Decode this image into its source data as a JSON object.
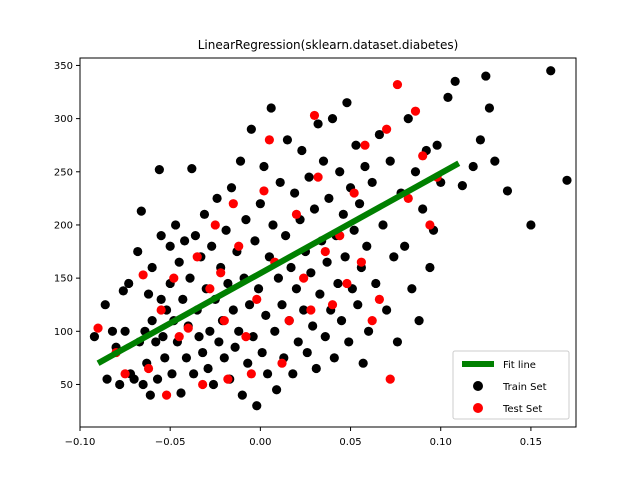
{
  "chart_data": {
    "type": "scatter",
    "title": "LinearRegression(sklearn.dataset.diabetes)",
    "xlabel": "",
    "ylabel": "",
    "xlim": [
      -0.1,
      0.175
    ],
    "ylim": [
      10,
      357
    ],
    "x_ticks": [
      -0.1,
      -0.05,
      0.0,
      0.05,
      0.1,
      0.15
    ],
    "x_tick_labels": [
      "−0.10",
      "−0.05",
      "0.00",
      "0.05",
      "0.10",
      "0.15"
    ],
    "y_ticks": [
      50,
      100,
      150,
      200,
      250,
      300,
      350
    ],
    "y_tick_labels": [
      "50",
      "100",
      "150",
      "200",
      "250",
      "300",
      "350"
    ],
    "grid": false,
    "legend_position": "lower-right",
    "series": [
      {
        "name": "Fit line",
        "kind": "line",
        "color": "#008000",
        "points": [
          [
            -0.09,
            70
          ],
          [
            0.11,
            258
          ]
        ]
      },
      {
        "name": "Train Set",
        "kind": "scatter",
        "color": "#000000",
        "points": [
          [
            -0.092,
            95
          ],
          [
            -0.086,
            125
          ],
          [
            -0.085,
            55
          ],
          [
            -0.082,
            100
          ],
          [
            -0.08,
            85
          ],
          [
            -0.078,
            50
          ],
          [
            -0.076,
            138
          ],
          [
            -0.075,
            100
          ],
          [
            -0.073,
            145
          ],
          [
            -0.072,
            60
          ],
          [
            -0.07,
            55
          ],
          [
            -0.068,
            175
          ],
          [
            -0.067,
            90
          ],
          [
            -0.066,
            213
          ],
          [
            -0.065,
            50
          ],
          [
            -0.064,
            100
          ],
          [
            -0.063,
            70
          ],
          [
            -0.062,
            135
          ],
          [
            -0.061,
            40
          ],
          [
            -0.06,
            110
          ],
          [
            -0.06,
            160
          ],
          [
            -0.058,
            90
          ],
          [
            -0.057,
            55
          ],
          [
            -0.056,
            252
          ],
          [
            -0.055,
            190
          ],
          [
            -0.055,
            130
          ],
          [
            -0.054,
            95
          ],
          [
            -0.053,
            75
          ],
          [
            -0.052,
            120
          ],
          [
            -0.05,
            180
          ],
          [
            -0.05,
            145
          ],
          [
            -0.049,
            60
          ],
          [
            -0.048,
            110
          ],
          [
            -0.047,
            200
          ],
          [
            -0.046,
            90
          ],
          [
            -0.045,
            165
          ],
          [
            -0.044,
            42
          ],
          [
            -0.043,
            130
          ],
          [
            -0.042,
            185
          ],
          [
            -0.041,
            75
          ],
          [
            -0.04,
            105
          ],
          [
            -0.039,
            150
          ],
          [
            -0.038,
            253
          ],
          [
            -0.037,
            60
          ],
          [
            -0.036,
            190
          ],
          [
            -0.035,
            120
          ],
          [
            -0.034,
            95
          ],
          [
            -0.033,
            170
          ],
          [
            -0.032,
            80
          ],
          [
            -0.031,
            210
          ],
          [
            -0.03,
            140
          ],
          [
            -0.029,
            65
          ],
          [
            -0.028,
            100
          ],
          [
            -0.027,
            180
          ],
          [
            -0.026,
            50
          ],
          [
            -0.025,
            130
          ],
          [
            -0.024,
            225
          ],
          [
            -0.023,
            90
          ],
          [
            -0.022,
            160
          ],
          [
            -0.021,
            110
          ],
          [
            -0.02,
            75
          ],
          [
            -0.019,
            195
          ],
          [
            -0.018,
            145
          ],
          [
            -0.017,
            55
          ],
          [
            -0.016,
            235
          ],
          [
            -0.015,
            120
          ],
          [
            -0.014,
            85
          ],
          [
            -0.013,
            175
          ],
          [
            -0.012,
            100
          ],
          [
            -0.011,
            260
          ],
          [
            -0.01,
            40
          ],
          [
            -0.009,
            150
          ],
          [
            -0.008,
            205
          ],
          [
            -0.007,
            70
          ],
          [
            -0.006,
            125
          ],
          [
            -0.005,
            290
          ],
          [
            -0.004,
            95
          ],
          [
            -0.003,
            185
          ],
          [
            -0.002,
            30
          ],
          [
            -0.001,
            140
          ],
          [
            0.0,
            220
          ],
          [
            0.001,
            80
          ],
          [
            0.002,
            255
          ],
          [
            0.003,
            115
          ],
          [
            0.004,
            60
          ],
          [
            0.005,
            170
          ],
          [
            0.006,
            310
          ],
          [
            0.007,
            200
          ],
          [
            0.008,
            100
          ],
          [
            0.009,
            45
          ],
          [
            0.01,
            150
          ],
          [
            0.011,
            240
          ],
          [
            0.012,
            125
          ],
          [
            0.013,
            75
          ],
          [
            0.014,
            190
          ],
          [
            0.015,
            280
          ],
          [
            0.016,
            110
          ],
          [
            0.017,
            160
          ],
          [
            0.018,
            60
          ],
          [
            0.019,
            230
          ],
          [
            0.02,
            140
          ],
          [
            0.021,
            90
          ],
          [
            0.022,
            205
          ],
          [
            0.023,
            270
          ],
          [
            0.024,
            120
          ],
          [
            0.025,
            175
          ],
          [
            0.026,
            80
          ],
          [
            0.027,
            245
          ],
          [
            0.028,
            155
          ],
          [
            0.029,
            105
          ],
          [
            0.03,
            215
          ],
          [
            0.031,
            65
          ],
          [
            0.032,
            295
          ],
          [
            0.033,
            135
          ],
          [
            0.034,
            185
          ],
          [
            0.035,
            260
          ],
          [
            0.036,
            95
          ],
          [
            0.037,
            165
          ],
          [
            0.038,
            225
          ],
          [
            0.039,
            120
          ],
          [
            0.04,
            300
          ],
          [
            0.041,
            75
          ],
          [
            0.042,
            190
          ],
          [
            0.043,
            145
          ],
          [
            0.044,
            250
          ],
          [
            0.045,
            110
          ],
          [
            0.046,
            210
          ],
          [
            0.047,
            170
          ],
          [
            0.048,
            315
          ],
          [
            0.049,
            90
          ],
          [
            0.05,
            235
          ],
          [
            0.051,
            140
          ],
          [
            0.052,
            195
          ],
          [
            0.053,
            275
          ],
          [
            0.054,
            125
          ],
          [
            0.055,
            220
          ],
          [
            0.056,
            160
          ],
          [
            0.057,
            70
          ],
          [
            0.058,
            255
          ],
          [
            0.059,
            180
          ],
          [
            0.06,
            100
          ],
          [
            0.062,
            240
          ],
          [
            0.064,
            145
          ],
          [
            0.066,
            285
          ],
          [
            0.068,
            200
          ],
          [
            0.07,
            120
          ],
          [
            0.072,
            260
          ],
          [
            0.074,
            170
          ],
          [
            0.076,
            90
          ],
          [
            0.078,
            230
          ],
          [
            0.08,
            180
          ],
          [
            0.082,
            300
          ],
          [
            0.084,
            140
          ],
          [
            0.086,
            250
          ],
          [
            0.088,
            110
          ],
          [
            0.09,
            215
          ],
          [
            0.092,
            270
          ],
          [
            0.094,
            160
          ],
          [
            0.096,
            195
          ],
          [
            0.098,
            275
          ],
          [
            0.1,
            240
          ],
          [
            0.104,
            320
          ],
          [
            0.108,
            335
          ],
          [
            0.112,
            237
          ],
          [
            0.118,
            255
          ],
          [
            0.122,
            280
          ],
          [
            0.125,
            340
          ],
          [
            0.127,
            310
          ],
          [
            0.13,
            260
          ],
          [
            0.137,
            232
          ],
          [
            0.15,
            200
          ],
          [
            0.161,
            345
          ],
          [
            0.17,
            242
          ]
        ]
      },
      {
        "name": "Test Set",
        "kind": "scatter",
        "color": "#ff0000",
        "points": [
          [
            -0.09,
            103
          ],
          [
            -0.08,
            80
          ],
          [
            -0.075,
            60
          ],
          [
            -0.065,
            153
          ],
          [
            -0.062,
            65
          ],
          [
            -0.055,
            120
          ],
          [
            -0.052,
            40
          ],
          [
            -0.048,
            150
          ],
          [
            -0.045,
            95
          ],
          [
            -0.04,
            103
          ],
          [
            -0.035,
            170
          ],
          [
            -0.032,
            50
          ],
          [
            -0.028,
            140
          ],
          [
            -0.025,
            200
          ],
          [
            -0.022,
            155
          ],
          [
            -0.02,
            110
          ],
          [
            -0.018,
            55
          ],
          [
            -0.015,
            220
          ],
          [
            -0.012,
            180
          ],
          [
            -0.008,
            95
          ],
          [
            -0.005,
            60
          ],
          [
            -0.002,
            130
          ],
          [
            0.002,
            232
          ],
          [
            0.005,
            280
          ],
          [
            0.008,
            165
          ],
          [
            0.012,
            70
          ],
          [
            0.016,
            110
          ],
          [
            0.02,
            210
          ],
          [
            0.024,
            150
          ],
          [
            0.028,
            120
          ],
          [
            0.03,
            303
          ],
          [
            0.032,
            245
          ],
          [
            0.036,
            175
          ],
          [
            0.04,
            125
          ],
          [
            0.044,
            190
          ],
          [
            0.048,
            145
          ],
          [
            0.052,
            230
          ],
          [
            0.056,
            165
          ],
          [
            0.058,
            275
          ],
          [
            0.062,
            110
          ],
          [
            0.066,
            130
          ],
          [
            0.07,
            290
          ],
          [
            0.072,
            55
          ],
          [
            0.076,
            332
          ],
          [
            0.082,
            225
          ],
          [
            0.086,
            307
          ],
          [
            0.09,
            265
          ],
          [
            0.094,
            200
          ],
          [
            0.098,
            245
          ]
        ]
      }
    ]
  },
  "legend": {
    "fit_label": "Fit line",
    "train_label": "Train Set",
    "test_label": "Test Set"
  }
}
